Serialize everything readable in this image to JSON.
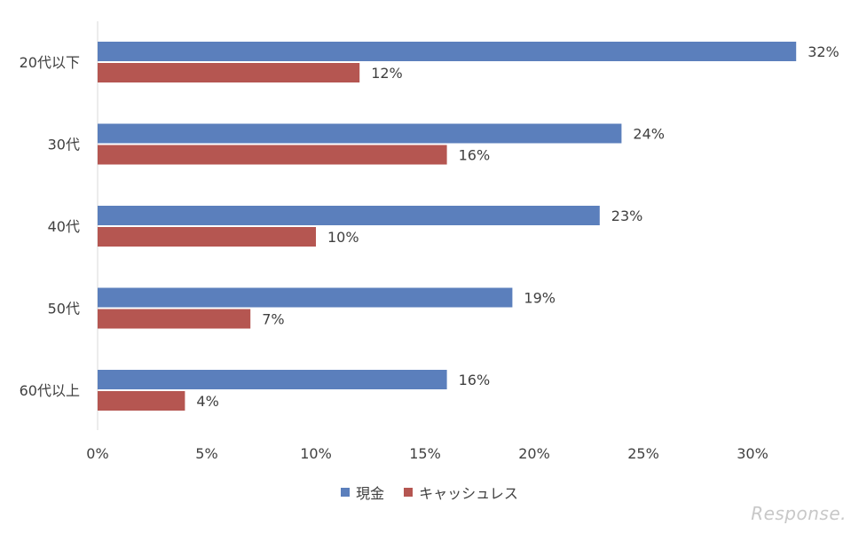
{
  "chart_data": {
    "type": "bar",
    "orientation": "horizontal",
    "categories": [
      "20代以下",
      "30代",
      "40代",
      "50代",
      "60代以上"
    ],
    "series": [
      {
        "name": "現金",
        "values": [
          32,
          24,
          23,
          19,
          16
        ],
        "labels": [
          "32%",
          "24%",
          "23%",
          "19%",
          "16%"
        ],
        "color": "#5b7fbc"
      },
      {
        "name": "キャッシュレス",
        "values": [
          12,
          16,
          10,
          7,
          4
        ],
        "labels": [
          "12%",
          "16%",
          "10%",
          "7%",
          "4%"
        ],
        "color": "#b55651"
      }
    ],
    "xticks": [
      "0%",
      "5%",
      "10%",
      "15%",
      "20%",
      "25%",
      "30%"
    ],
    "xlim": [
      0,
      34
    ],
    "grid": false,
    "legend_position": "bottom"
  },
  "watermark": "Response."
}
